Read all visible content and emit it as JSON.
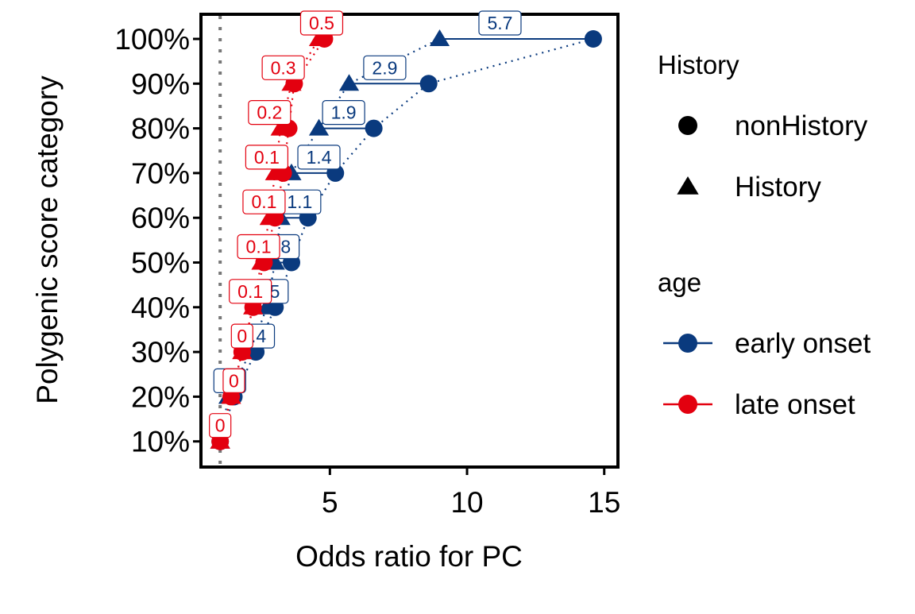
{
  "chart_data": {
    "type": "scatter",
    "xlabel": "Odds ratio for PC",
    "ylabel": "Polygenic score category",
    "xlim": [
      0.3,
      15.5
    ],
    "x_ticks": [
      "5",
      "10",
      "15"
    ],
    "y_categories": [
      "10%",
      "20%",
      "30%",
      "40%",
      "50%",
      "60%",
      "70%",
      "80%",
      "90%",
      "100%"
    ],
    "reference_line_x": 1,
    "grid": false,
    "legend_position": "right",
    "legend": {
      "shape_title": "History",
      "shape_items": [
        {
          "label": "nonHistory",
          "shape": "circle"
        },
        {
          "label": "History",
          "shape": "triangle"
        }
      ],
      "color_title": "age",
      "color_items": [
        {
          "label": "early onset",
          "color": "#0A3A7E"
        },
        {
          "label": "late onset",
          "color": "#E3000F"
        }
      ]
    },
    "series": [
      {
        "color": "#0A3A7E",
        "nonHistory": [
          1.0,
          1.5,
          2.3,
          3.0,
          3.6,
          4.2,
          5.2,
          6.6,
          8.6,
          14.6
        ],
        "History": [
          1.0,
          1.3,
          2.1,
          2.7,
          3.0,
          3.2,
          3.6,
          4.6,
          5.7,
          9.0
        ],
        "labels": [
          "",
          ".2",
          ".4",
          ".5",
          ".8",
          "1.1",
          "1.4",
          "1.9",
          "2.9",
          "5.7"
        ],
        "label_x": [
          1.0,
          1.35,
          2.4,
          2.9,
          3.3,
          3.9,
          4.6,
          5.5,
          7.0,
          11.2
        ]
      },
      {
        "color": "#E3000F",
        "nonHistory": [
          1.0,
          1.4,
          1.8,
          2.2,
          2.6,
          3.0,
          3.3,
          3.5,
          3.7,
          4.8
        ],
        "History": [
          1.0,
          1.4,
          1.8,
          2.2,
          2.5,
          2.8,
          3.0,
          3.2,
          3.6,
          4.6
        ],
        "labels": [
          "0",
          "0",
          "0",
          "0.1",
          "0.1",
          "0.1",
          "0.1",
          "0.2",
          "0.3",
          "0.5"
        ],
        "label_x": [
          1.0,
          1.5,
          1.8,
          2.1,
          2.4,
          2.6,
          2.7,
          2.8,
          3.3,
          4.7
        ]
      }
    ]
  }
}
